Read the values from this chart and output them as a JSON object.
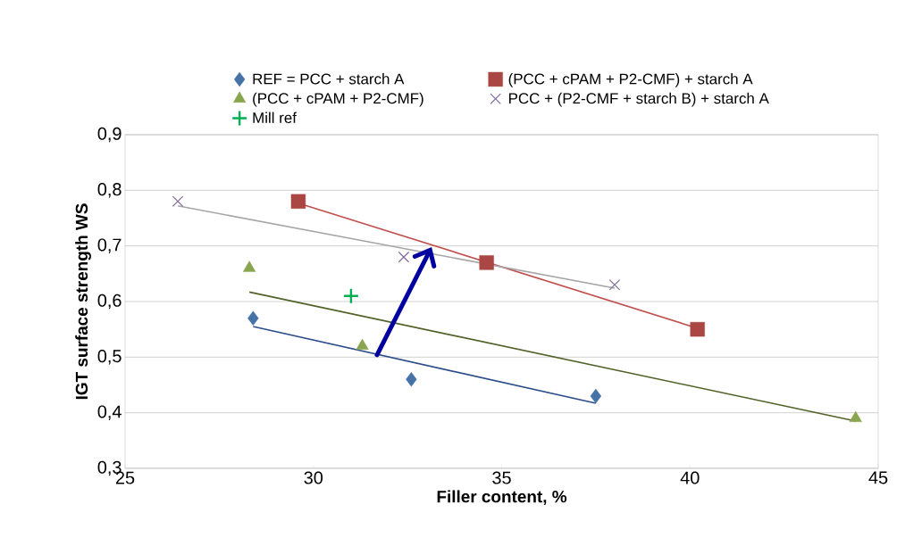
{
  "chart_data": {
    "type": "scatter",
    "xlabel": "Filler content, %",
    "ylabel": "IGT surface strength WS",
    "xlim": [
      25,
      45
    ],
    "ylim": [
      0.3,
      0.9
    ],
    "xticks": [
      25,
      30,
      35,
      40,
      45
    ],
    "yticks": [
      {
        "value": 0.3,
        "label": "0,3"
      },
      {
        "value": 0.4,
        "label": "0,4"
      },
      {
        "value": 0.5,
        "label": "0,5"
      },
      {
        "value": 0.6,
        "label": "0,6"
      },
      {
        "value": 0.7,
        "label": "0,7"
      },
      {
        "value": 0.8,
        "label": "0,8"
      },
      {
        "value": 0.9,
        "label": "0,9"
      }
    ],
    "grid": "y",
    "legend": "top",
    "series": [
      {
        "name": "REF = PCC + starch A",
        "type": "scatter",
        "marker": "diamond",
        "color": "#4572a7",
        "x": [
          28.4,
          32.6,
          37.5
        ],
        "values": [
          0.57,
          0.46,
          0.43
        ]
      },
      {
        "name": "(PCC + cPAM + P2-CMF)  + starch A",
        "type": "scatter",
        "marker": "square",
        "color": "#aa4643",
        "x": [
          29.6,
          34.6,
          40.2
        ],
        "values": [
          0.78,
          0.67,
          0.55
        ]
      },
      {
        "name": "(PCC + cPAM + P2-CMF)",
        "type": "scatter",
        "marker": "triangle",
        "color": "#89a54e",
        "x": [
          28.3,
          31.3,
          44.4
        ],
        "values": [
          0.66,
          0.52,
          0.39
        ]
      },
      {
        "name": "PCC + (P2-CMF + starch B) + starch A",
        "type": "scatter",
        "marker": "x",
        "color": "#80699b",
        "x": [
          26.4,
          32.4,
          38.0
        ],
        "values": [
          0.78,
          0.68,
          0.63
        ]
      },
      {
        "name": "Mill ref",
        "type": "scatter",
        "marker": "cross",
        "color": "#00b050",
        "x": [
          31.0
        ],
        "values": [
          0.61
        ]
      },
      {
        "type": "line",
        "marker": "none",
        "color": "#2c4d8a",
        "x": [
          28.4,
          37.5
        ],
        "values": [
          0.555,
          0.417
        ]
      },
      {
        "type": "line",
        "marker": "none",
        "color": "#c0504d",
        "x": [
          29.6,
          40.2
        ],
        "values": [
          0.777,
          0.552
        ]
      },
      {
        "type": "line",
        "marker": "none",
        "color": "#4f6228",
        "x": [
          28.3,
          44.4
        ],
        "values": [
          0.617,
          0.385
        ]
      },
      {
        "type": "line",
        "marker": "none",
        "color": "#a6a6a6",
        "x": [
          26.4,
          38.0
        ],
        "values": [
          0.772,
          0.624
        ]
      }
    ]
  }
}
